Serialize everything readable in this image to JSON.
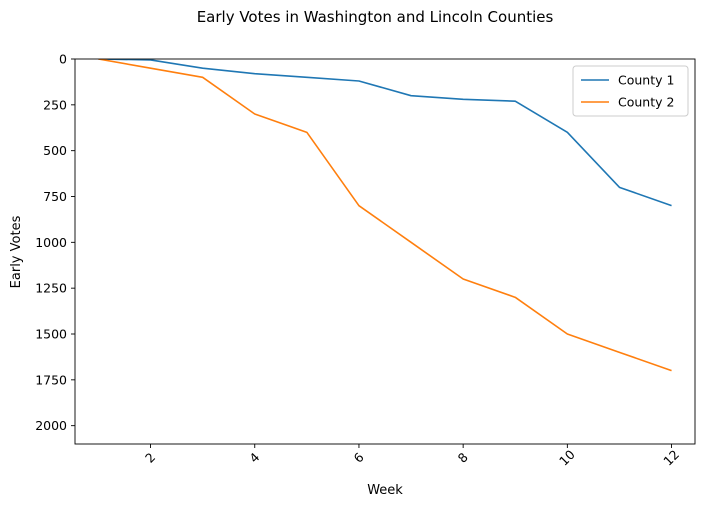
{
  "chart_data": {
    "type": "line",
    "title": "Early Votes in Washington and Lincoln Counties",
    "xlabel": "Week",
    "ylabel": "Early Votes",
    "x": [
      1,
      2,
      3,
      4,
      5,
      6,
      7,
      8,
      9,
      10,
      11,
      12
    ],
    "xlim": [
      0.55,
      12.45
    ],
    "ylim": [
      2100,
      0
    ],
    "y_inverted": true,
    "xticks": [
      2,
      4,
      6,
      8,
      10,
      12
    ],
    "yticks": [
      0,
      250,
      500,
      750,
      1000,
      1250,
      1500,
      1750,
      2000
    ],
    "xtick_rotation": 45,
    "grid": false,
    "legend_position": "top-right",
    "series": [
      {
        "name": "County 1",
        "color": "#1f77b4",
        "values": [
          0,
          5,
          50,
          80,
          100,
          120,
          200,
          220,
          230,
          400,
          700,
          800
        ]
      },
      {
        "name": "County 2",
        "color": "#ff7f0e",
        "values": [
          0,
          50,
          100,
          300,
          400,
          800,
          1000,
          1200,
          1300,
          1500,
          1600,
          1700
        ]
      }
    ]
  }
}
